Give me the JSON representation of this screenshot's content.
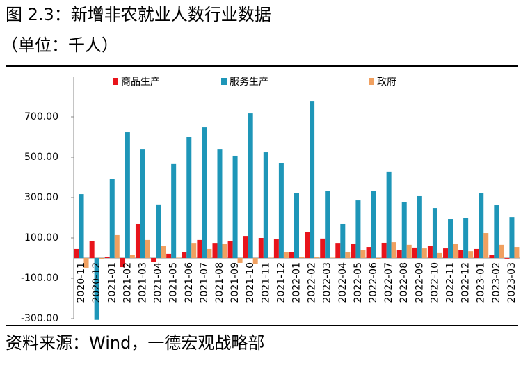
{
  "chart_data": {
    "type": "bar",
    "title": "图 2.3：新增非农就业人数行业数据",
    "subtitle": "（单位：千人）",
    "source": "资料来源：Wind，一德宏观战略部",
    "categories": [
      "2020-11",
      "2020-12",
      "2021-01",
      "2021-02",
      "2021-03",
      "2021-04",
      "2021-05",
      "2021-06",
      "2021-07",
      "2021-08",
      "2021-09",
      "2021-10",
      "2021-11",
      "2021-12",
      "2022-01",
      "2022-02",
      "2022-03",
      "2022-04",
      "2022-05",
      "2022-06",
      "2022-07",
      "2022-08",
      "2022-09",
      "2022-10",
      "2022-11",
      "2022-12",
      "2023-01",
      "2023-02",
      "2023-03"
    ],
    "series": [
      {
        "name": "商品生产",
        "color": "#e8141b",
        "values": [
          45,
          86,
          6,
          -45,
          169,
          -20,
          21,
          31,
          90,
          72,
          86,
          110,
          100,
          93,
          31,
          128,
          97,
          72,
          69,
          55,
          76,
          38,
          52,
          62,
          48,
          38,
          45,
          14,
          -3
        ]
      },
      {
        "name": "服务生产",
        "color": "#1e96b8",
        "values": [
          317,
          -306,
          393,
          624,
          541,
          266,
          466,
          600,
          648,
          541,
          507,
          717,
          524,
          469,
          324,
          779,
          334,
          169,
          286,
          334,
          428,
          276,
          307,
          248,
          193,
          200,
          321,
          262,
          203
        ]
      },
      {
        "name": "政府",
        "color": "#f0a060",
        "values": [
          -48,
          -5,
          114,
          17,
          90,
          59,
          2,
          72,
          45,
          69,
          -24,
          -31,
          2,
          31,
          4,
          4,
          2,
          31,
          41,
          -7,
          79,
          66,
          48,
          28,
          69,
          34,
          124,
          66,
          55
        ]
      }
    ],
    "ylim": [
      -300,
      900
    ],
    "yticks": [
      {
        "value": -300,
        "label": "-300.00"
      },
      {
        "value": -100,
        "label": "-100.00"
      },
      {
        "value": 100,
        "label": "100.00"
      },
      {
        "value": 300,
        "label": "300.00"
      },
      {
        "value": 500,
        "label": "500.00"
      },
      {
        "value": 700,
        "label": "700.00"
      }
    ],
    "legend": "top"
  }
}
